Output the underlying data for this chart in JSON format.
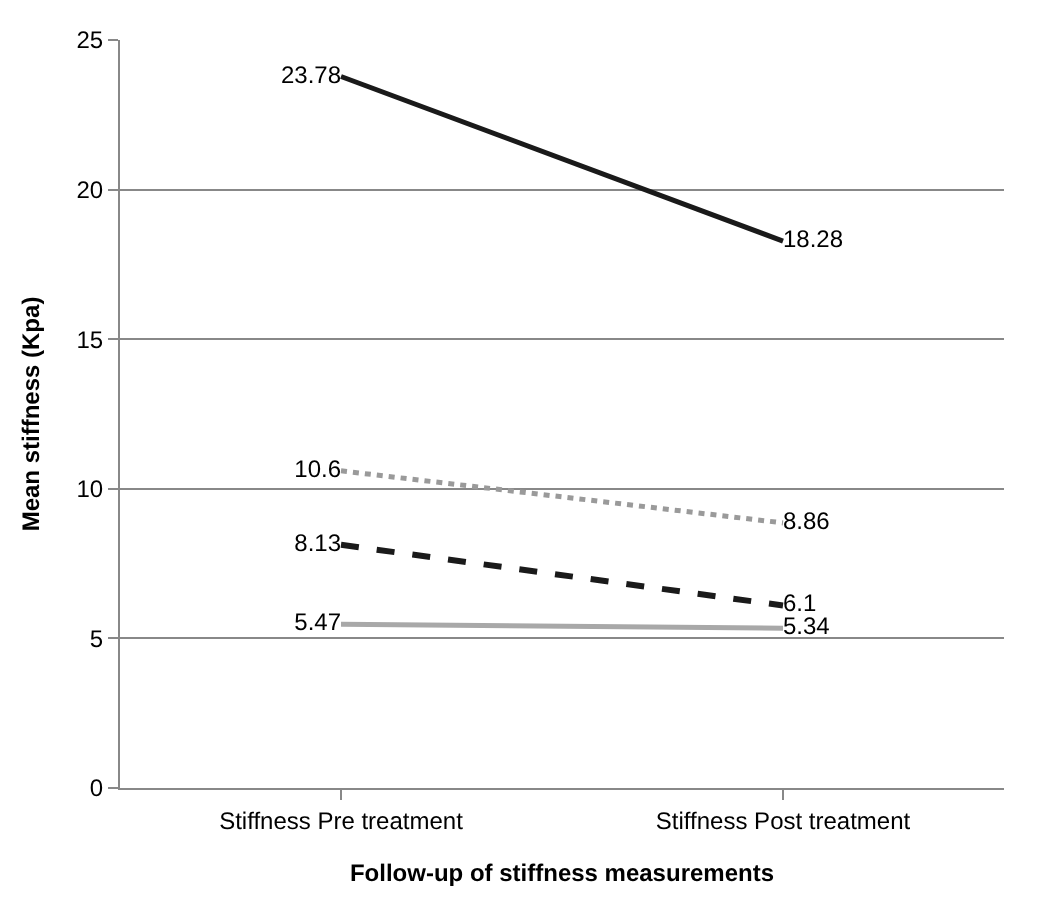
{
  "chart_data": {
    "type": "line",
    "xlabel": "Follow-up of stiffness measurements",
    "ylabel": "Mean stiffness (Kpa)",
    "categories": [
      "Stiffness Pre treatment",
      "Stiffness Post treatment"
    ],
    "series": [
      {
        "color": "#1a1a1a",
        "values": [
          23.78,
          18.28
        ],
        "line_style": "solid"
      },
      {
        "color": "#9a9a9a",
        "values": [
          10.6,
          8.86
        ],
        "line_style": "dotted"
      },
      {
        "color": "#1a1a1a",
        "values": [
          8.13,
          6.1
        ],
        "line_style": "dashed"
      },
      {
        "color": "#a8a8a8",
        "values": [
          5.47,
          5.34
        ],
        "line_style": "solid"
      }
    ],
    "ylim": [
      0,
      25
    ],
    "yticks": [
      0,
      5,
      10,
      15,
      20,
      25
    ],
    "grid": "y",
    "data_labels": true,
    "marker": "none"
  }
}
